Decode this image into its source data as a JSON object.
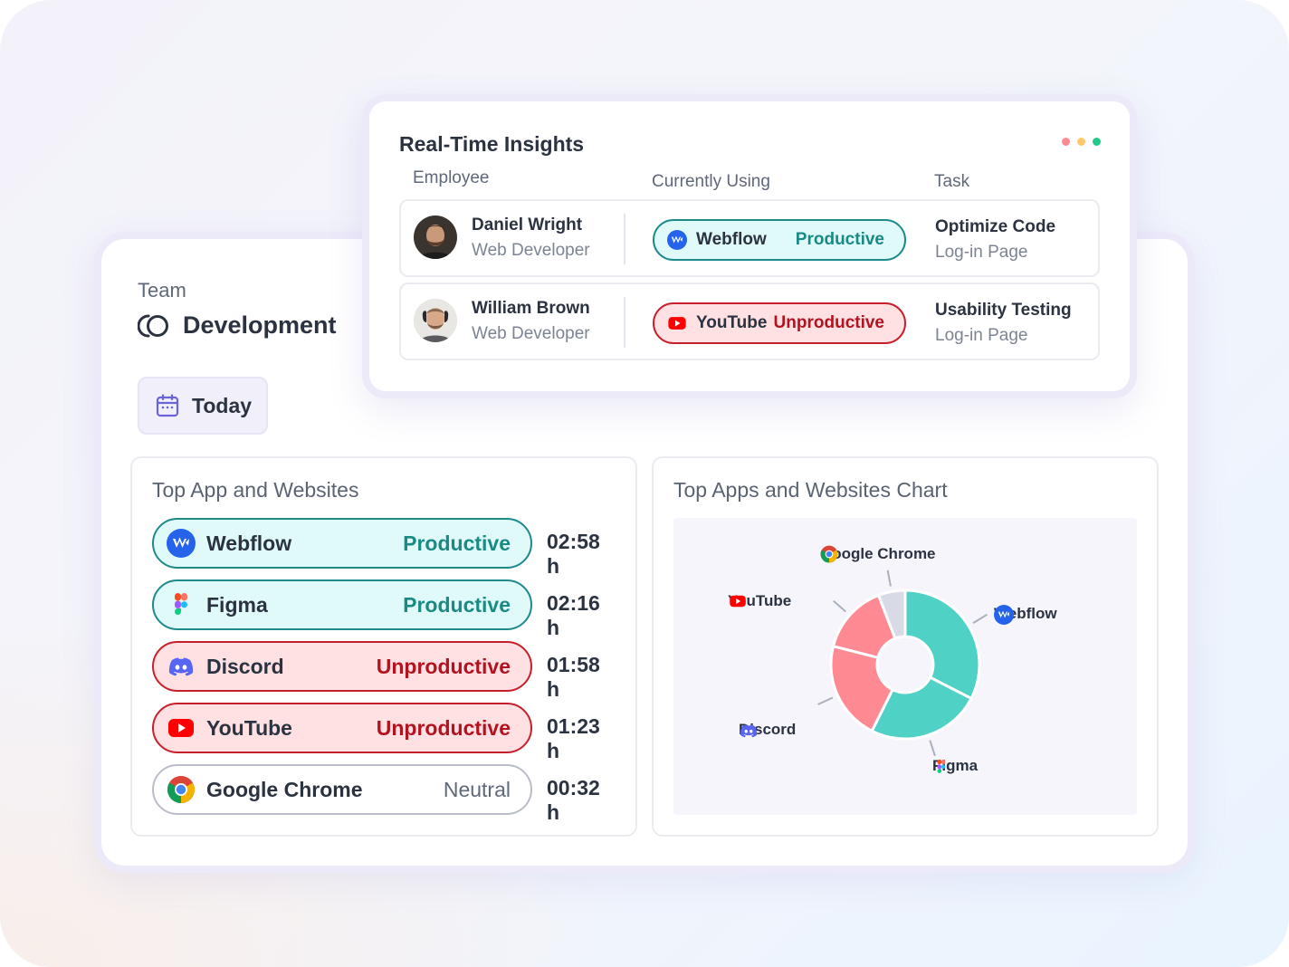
{
  "colors": {
    "productive_bg": "#e0fafa",
    "productive_border": "#1e8a8a",
    "productive_text": "#1a8a84",
    "unproductive_bg": "#ffe1e4",
    "unproductive_border": "#c71f2c",
    "unproductive_text": "#b3121f",
    "accent_purple": "#6c63d9",
    "chart_teal": "#4fd1c5",
    "chart_pink": "#ff8a94",
    "chart_gray": "#d8dbe6"
  },
  "team": {
    "label": "Team",
    "name": "Development",
    "icon": "team-ring-icon"
  },
  "date_filter": {
    "label": "Today",
    "icon": "calendar-icon"
  },
  "top_apps": {
    "title": "Top App and Websites",
    "items": [
      {
        "name": "Webflow",
        "status": "Productive",
        "time": "02:58 h",
        "type": "productive",
        "icon": "webflow-icon"
      },
      {
        "name": "Figma",
        "status": "Productive",
        "time": "02:16 h",
        "type": "productive",
        "icon": "figma-icon"
      },
      {
        "name": "Discord",
        "status": "Unproductive",
        "time": "01:58 h",
        "type": "unproductive",
        "icon": "discord-icon"
      },
      {
        "name": "YouTube",
        "status": "Unproductive",
        "time": "01:23 h",
        "type": "unproductive",
        "icon": "youtube-icon"
      },
      {
        "name": "Google Chrome",
        "status": "Neutral",
        "time": "00:32 h",
        "type": "neutral",
        "icon": "chrome-icon"
      }
    ]
  },
  "chart_panel": {
    "title": "Top Apps and  Websites Chart"
  },
  "chart_data": {
    "type": "pie",
    "donut": true,
    "title": "Top Apps and  Websites Chart",
    "categories": [
      "Webflow",
      "Figma",
      "Discord",
      "YouTube",
      "Google Chrome"
    ],
    "values": [
      178,
      136,
      118,
      83,
      32
    ],
    "colors": [
      "#4fd1c5",
      "#4fd1c5",
      "#ff8a94",
      "#ff8a94",
      "#d8dbe6"
    ],
    "labels": {
      "chrome": "Google Chrome",
      "youtube": "YouTube",
      "webflow": "Webflow",
      "discord": "Discord",
      "figma": "Figma"
    }
  },
  "insights": {
    "title": "Real-Time Insights",
    "columns": {
      "employee": "Employee",
      "using": "Currently Using",
      "task": "Task"
    },
    "rows": [
      {
        "name": "Daniel Wright",
        "role": "Web Developer",
        "app": "Webflow",
        "app_icon": "webflow-icon",
        "status": "Productive",
        "type": "productive",
        "task": "Optimize Code",
        "task_sub": "Log-in Page"
      },
      {
        "name": "William Brown",
        "role": "Web Developer",
        "app": "YouTube",
        "app_icon": "youtube-icon",
        "status": "Unproductive",
        "type": "unproductive",
        "task": "Usability Testing",
        "task_sub": "Log-in Page"
      }
    ]
  }
}
